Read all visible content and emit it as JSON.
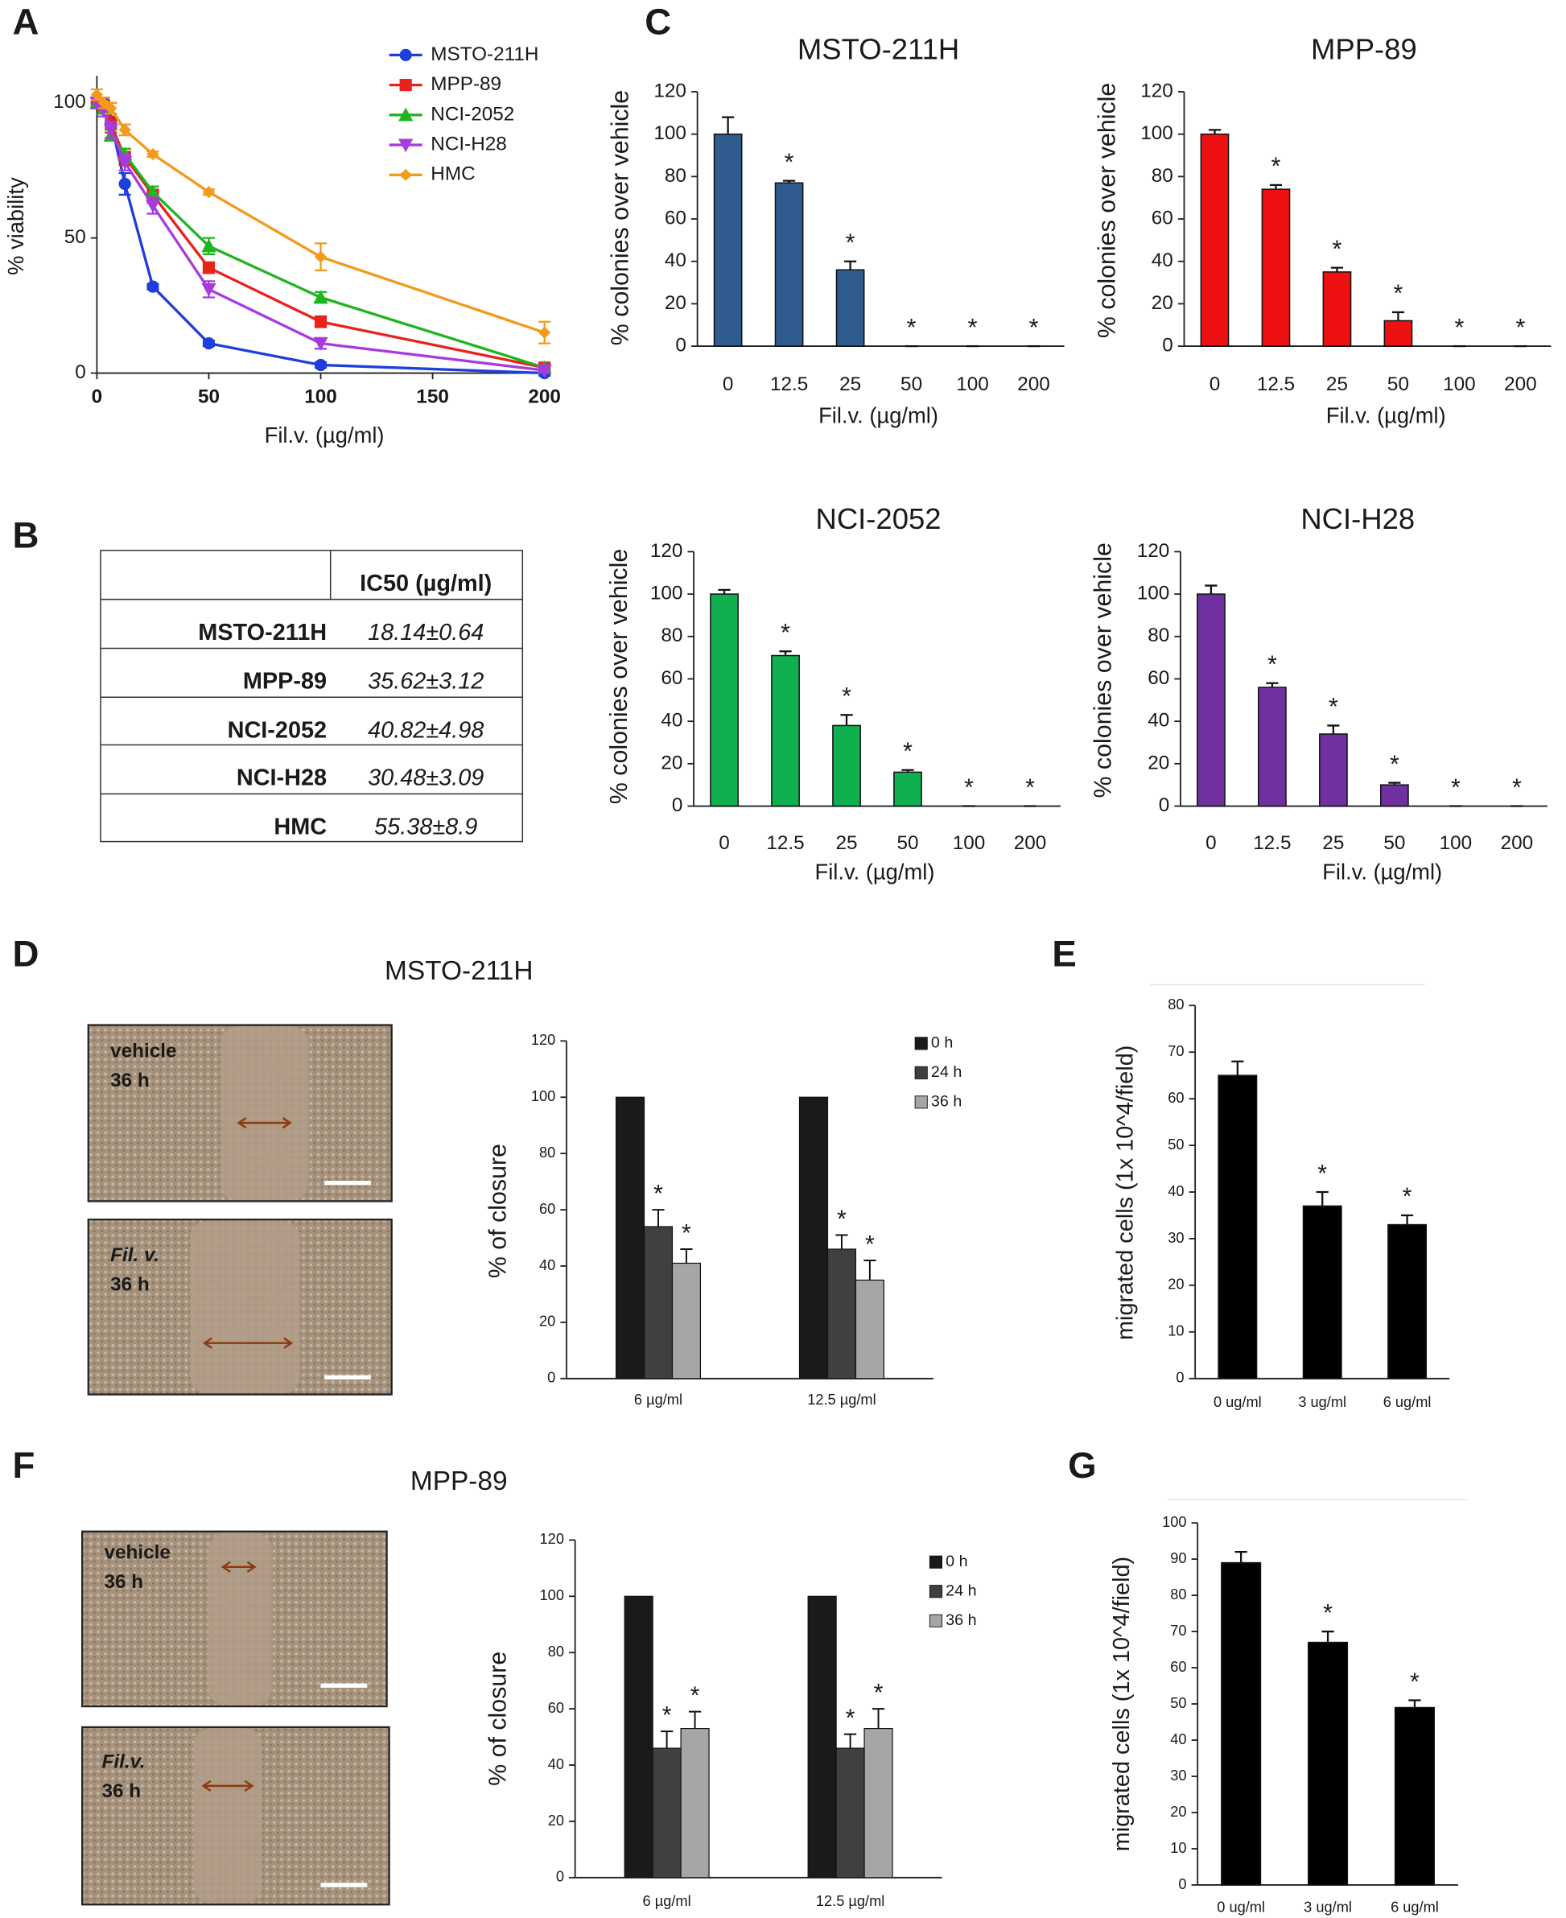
{
  "panel_labels": [
    "A",
    "B",
    "C",
    "D",
    "E",
    "F",
    "G"
  ],
  "table": {
    "header": [
      "IC50 (µg/ml)"
    ],
    "rows": [
      [
        "MSTO-211H",
        "18.14±0.64"
      ],
      [
        "MPP-89",
        "35.62±3.12"
      ],
      [
        "NCI-2052",
        "40.82±4.98"
      ],
      [
        "NCI-H28",
        "30.48±3.09"
      ],
      [
        "HMC",
        "55.38±8.9"
      ]
    ]
  },
  "images": [
    {
      "lines": [
        "vehicle",
        "36 h"
      ]
    },
    {
      "lines": [
        "Fil. v.",
        "36 h"
      ]
    },
    {
      "lines": [
        "vehicle",
        "36 h"
      ]
    },
    {
      "lines": [
        "Fil.v.",
        "36 h"
      ]
    }
  ],
  "chart_data": [
    {
      "type": "line",
      "xlabel": "Fil.v. (µg/ml)",
      "ylabel": "% viability",
      "x": [
        0,
        3.125,
        6.25,
        12.5,
        25,
        50,
        100,
        200
      ],
      "xlim": [
        0,
        200
      ],
      "ylim": [
        0,
        110
      ],
      "xticks": [
        0,
        50,
        100,
        150,
        200
      ],
      "yticks": [
        0,
        50,
        100
      ],
      "legend": "upper right",
      "series": [
        {
          "name": "MSTO-211H",
          "color": "#1f3fdc",
          "marker": "circle",
          "values": [
            100,
            100,
            93,
            70,
            32,
            11,
            3,
            0
          ],
          "errors": [
            2,
            2,
            3,
            4,
            1,
            1,
            1,
            1
          ]
        },
        {
          "name": "MPP-89",
          "color": "#e8231c",
          "marker": "square",
          "values": [
            100,
            99,
            92,
            80,
            66,
            39,
            19,
            2
          ],
          "errors": [
            2,
            2,
            3,
            3,
            3,
            2,
            2,
            1
          ]
        },
        {
          "name": "NCI-2052",
          "color": "#1fb51f",
          "marker": "triangle",
          "values": [
            100,
            98,
            88,
            81,
            67,
            47,
            28,
            2
          ],
          "errors": [
            2,
            2,
            2,
            2,
            2,
            3,
            2,
            1
          ]
        },
        {
          "name": "NCI-H28",
          "color": "#a83be0",
          "marker": "triangle-down",
          "values": [
            100,
            97,
            90,
            78,
            62,
            31,
            11,
            1
          ],
          "errors": [
            2,
            2,
            3,
            3,
            3,
            3,
            2,
            1
          ]
        },
        {
          "name": "HMC",
          "color": "#f39a1c",
          "marker": "diamond",
          "values": [
            103,
            100,
            98,
            90,
            81,
            67,
            43,
            15
          ],
          "errors": [
            2,
            2,
            2,
            2,
            1,
            1,
            5,
            4
          ]
        }
      ]
    },
    {
      "type": "bar",
      "title": "MSTO-211H",
      "xlabel": "Fil.v. (µg/ml)",
      "ylabel": "% colonies over vehicle",
      "categories": [
        "0",
        "12.5",
        "25",
        "50",
        "100",
        "200"
      ],
      "values": [
        100,
        77,
        36,
        0,
        0,
        0
      ],
      "errors": [
        8,
        1,
        4,
        0,
        0,
        0
      ],
      "color": "#2f5b8e",
      "ylim": [
        0,
        120
      ],
      "yticks": [
        0,
        20,
        40,
        60,
        80,
        100,
        120
      ],
      "annotations": [
        {
          "index": 1,
          "text": "*"
        },
        {
          "index": 2,
          "text": "*"
        },
        {
          "index": 3,
          "text": "*"
        },
        {
          "index": 4,
          "text": "*"
        },
        {
          "index": 5,
          "text": "*"
        }
      ]
    },
    {
      "type": "bar",
      "title": "MPP-89",
      "xlabel": "Fil.v. (µg/ml)",
      "ylabel": "% colonies over vehicle",
      "categories": [
        "0",
        "12.5",
        "25",
        "50",
        "100",
        "200"
      ],
      "values": [
        100,
        74,
        35,
        12,
        0,
        0
      ],
      "errors": [
        2,
        2,
        2,
        4,
        0,
        0
      ],
      "color": "#ee1111",
      "ylim": [
        0,
        120
      ],
      "yticks": [
        0,
        20,
        40,
        60,
        80,
        100,
        120
      ],
      "annotations": [
        {
          "index": 1,
          "text": "*"
        },
        {
          "index": 2,
          "text": "*"
        },
        {
          "index": 3,
          "text": "*"
        },
        {
          "index": 4,
          "text": "*"
        },
        {
          "index": 5,
          "text": "*"
        }
      ]
    },
    {
      "type": "bar",
      "title": "NCI-2052",
      "xlabel": "Fil.v. (µg/ml)",
      "ylabel": "% colonies over vehicle",
      "categories": [
        "0",
        "12.5",
        "25",
        "50",
        "100",
        "200"
      ],
      "values": [
        100,
        71,
        38,
        16,
        0,
        0
      ],
      "errors": [
        2,
        2,
        5,
        1,
        0,
        0
      ],
      "color": "#10b050",
      "ylim": [
        0,
        120
      ],
      "yticks": [
        0,
        20,
        40,
        60,
        80,
        100,
        120
      ],
      "annotations": [
        {
          "index": 1,
          "text": "*"
        },
        {
          "index": 2,
          "text": "*"
        },
        {
          "index": 3,
          "text": "*"
        },
        {
          "index": 4,
          "text": "*"
        },
        {
          "index": 5,
          "text": "*"
        }
      ]
    },
    {
      "type": "bar",
      "title": "NCI-H28",
      "xlabel": "Fil.v. (µg/ml)",
      "ylabel": "% colonies over vehicle",
      "categories": [
        "0",
        "12.5",
        "25",
        "50",
        "100",
        "200"
      ],
      "values": [
        100,
        56,
        34,
        10,
        0,
        0
      ],
      "errors": [
        4,
        2,
        4,
        1,
        0,
        0
      ],
      "color": "#7030a0",
      "ylim": [
        0,
        120
      ],
      "yticks": [
        0,
        20,
        40,
        60,
        80,
        100,
        120
      ],
      "annotations": [
        {
          "index": 1,
          "text": "*"
        },
        {
          "index": 2,
          "text": "*"
        },
        {
          "index": 3,
          "text": "*"
        },
        {
          "index": 4,
          "text": "*"
        },
        {
          "index": 5,
          "text": "*"
        }
      ]
    },
    {
      "type": "grouped_bar",
      "title": "MSTO-211H",
      "ylabel": "% of closure",
      "categories": [
        "6 µg/ml",
        "12.5 µg/ml"
      ],
      "ylim": [
        0,
        120
      ],
      "yticks": [
        0,
        20,
        40,
        60,
        80,
        100,
        120
      ],
      "legend": "upper right",
      "series": [
        {
          "name": "0 h",
          "color": "#1a1a1a",
          "values": [
            100,
            100
          ]
        },
        {
          "name": "24 h",
          "color": "#404040",
          "values": [
            54,
            46
          ],
          "errors": [
            6,
            5
          ]
        },
        {
          "name": "36 h",
          "color": "#a6a6a6",
          "values": [
            41,
            35
          ],
          "errors": [
            5,
            7
          ]
        }
      ],
      "annotations": [
        {
          "series": 1,
          "index": 0,
          "text": "*"
        },
        {
          "series": 2,
          "index": 0,
          "text": "*"
        },
        {
          "series": 1,
          "index": 1,
          "text": "*"
        },
        {
          "series": 2,
          "index": 1,
          "text": "*"
        }
      ]
    },
    {
      "type": "bar",
      "ylabel": "migrated cells (1x 10^4/field)",
      "categories": [
        "0 ug/ml",
        "3 ug/ml",
        "6 ug/ml"
      ],
      "values": [
        65,
        37,
        33
      ],
      "errors": [
        3,
        3,
        2
      ],
      "color": "#000000",
      "ylim": [
        0,
        80
      ],
      "yticks": [
        0,
        10,
        20,
        30,
        40,
        50,
        60,
        70,
        80
      ],
      "annotations": [
        {
          "index": 1,
          "text": "*"
        },
        {
          "index": 2,
          "text": "*"
        }
      ]
    },
    {
      "type": "grouped_bar",
      "title": "MPP-89",
      "ylabel": "% of closure",
      "categories": [
        "6 µg/ml",
        "12.5 µg/ml"
      ],
      "ylim": [
        0,
        120
      ],
      "yticks": [
        0,
        20,
        40,
        60,
        80,
        100,
        120
      ],
      "legend": "upper right",
      "series": [
        {
          "name": "0 h",
          "color": "#1a1a1a",
          "values": [
            100,
            100
          ]
        },
        {
          "name": "24 h",
          "color": "#404040",
          "values": [
            46,
            46
          ],
          "errors": [
            6,
            5
          ]
        },
        {
          "name": "36 h",
          "color": "#a6a6a6",
          "values": [
            53,
            53
          ],
          "errors": [
            6,
            7
          ]
        }
      ],
      "annotations": [
        {
          "series": 1,
          "index": 0,
          "text": "*"
        },
        {
          "series": 2,
          "index": 0,
          "text": "*"
        },
        {
          "series": 1,
          "index": 1,
          "text": "*"
        },
        {
          "series": 2,
          "index": 1,
          "text": "*"
        }
      ]
    },
    {
      "type": "bar",
      "ylabel": "migrated cells (1x 10^4/field)",
      "categories": [
        "0 ug/ml",
        "3 ug/ml",
        "6 ug/ml"
      ],
      "values": [
        89,
        67,
        49
      ],
      "errors": [
        3,
        3,
        2
      ],
      "color": "#000000",
      "ylim": [
        0,
        100
      ],
      "yticks": [
        0,
        10,
        20,
        30,
        40,
        50,
        60,
        70,
        80,
        90,
        100
      ],
      "annotations": [
        {
          "index": 1,
          "text": "*"
        },
        {
          "index": 2,
          "text": "*"
        }
      ]
    }
  ]
}
